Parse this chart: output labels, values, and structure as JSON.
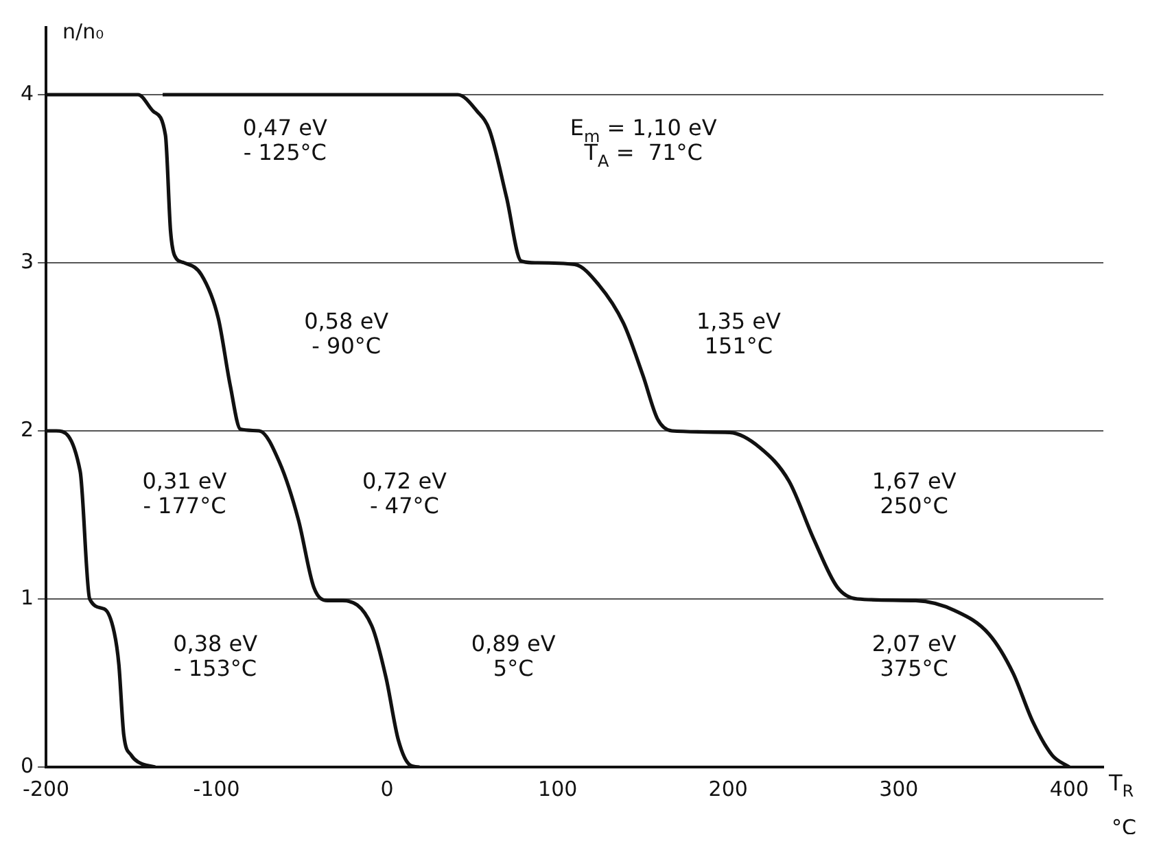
{
  "chart_data": {
    "type": "line",
    "xlabel": "T$_{R}$",
    "ylabel": "n/n₀",
    "xlim": [
      -200,
      420
    ],
    "ylim": [
      0,
      4.4
    ],
    "xticks": [
      -200,
      -100,
      0,
      100,
      200,
      300,
      400
    ],
    "yticks": [
      0,
      1,
      2,
      3,
      4
    ],
    "grid": "y",
    "legend": false,
    "marker": "none",
    "line_style": "solid",
    "series": [
      {
        "color": "#111111",
        "x": [
          -200,
          -194,
          -180,
          -174.4,
          -165.8,
          -160,
          -157.3,
          -154.4,
          -150,
          -146,
          -136
        ],
        "values": [
          2,
          2,
          1.76,
          1.0,
          0.94,
          0.8,
          0.61,
          0.19,
          0.07,
          0.03,
          0
        ]
      },
      {
        "color": "#111111",
        "x": [
          -200,
          -146,
          -137,
          -130,
          -127,
          -124.5,
          -119,
          -109,
          -99,
          -92,
          -86,
          -75,
          -63,
          -52,
          -43,
          -35,
          -26,
          -9,
          -0.6,
          6.6,
          13.7,
          19
        ],
        "values": [
          4,
          4,
          3.9,
          3.76,
          3.19,
          3.04,
          3.0,
          2.93,
          2.67,
          2.27,
          2.01,
          2.0,
          1.81,
          1.47,
          1.07,
          0.99,
          0.99,
          0.84,
          0.53,
          0.16,
          0.01,
          0
        ]
      },
      {
        "color": "#111111",
        "x": [
          -131.6,
          41.4,
          52.9,
          60,
          70,
          78.6,
          87,
          110,
          124,
          138.6,
          150,
          158.6,
          167,
          201,
          218.6,
          235.7,
          250,
          264,
          275.7,
          310,
          333,
          353,
          367,
          378.6,
          390,
          400
        ],
        "values": [
          4,
          4,
          3.9,
          3.79,
          3.39,
          3.01,
          3.0,
          2.99,
          2.87,
          2.64,
          2.33,
          2.07,
          2.0,
          1.99,
          1.9,
          1.7,
          1.36,
          1.07,
          1.0,
          0.99,
          0.93,
          0.79,
          0.56,
          0.27,
          0.07,
          0
        ]
      }
    ],
    "annotations": [
      "0,47 eV\n- 125°C",
      "E$_{m}$ = 1,10 eV\nT$_{A}$ =  71°C",
      "0,58 eV\n- 90°C",
      "1,35 eV\n151°C",
      "0,31 eV\n- 177°C",
      "0,72 eV\n- 47°C",
      "1,67 eV\n250°C",
      "0,38 eV\n- 153°C",
      "0,89 eV\n5°C",
      "2,07 eV\n375°C",
      "°C"
    ]
  }
}
